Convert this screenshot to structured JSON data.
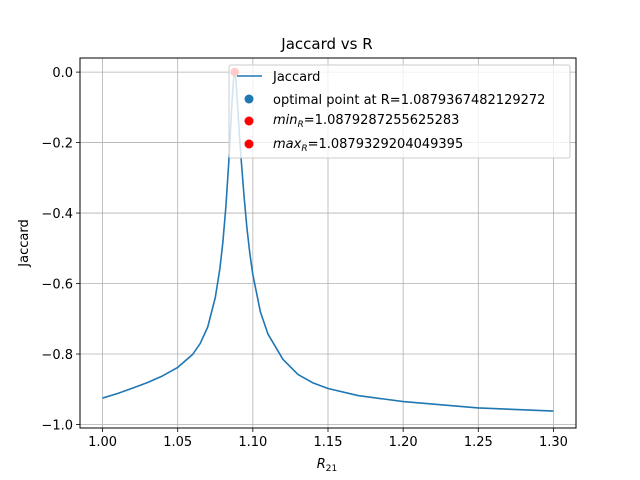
{
  "chart_data": {
    "type": "line",
    "title": "Jaccard vs R",
    "xlabel": {
      "base": "R",
      "sub": "21"
    },
    "ylabel": "Jaccard",
    "xlim": [
      0.985,
      1.315
    ],
    "ylim": [
      -1.01,
      0.04
    ],
    "xticks": [
      1.0,
      1.05,
      1.1,
      1.15,
      1.2,
      1.25,
      1.3
    ],
    "xtick_labels": [
      "1.00",
      "1.05",
      "1.10",
      "1.15",
      "1.20",
      "1.25",
      "1.30"
    ],
    "yticks": [
      0.0,
      -0.2,
      -0.4,
      -0.6,
      -0.8,
      -1.0
    ],
    "ytick_labels": [
      "0.0",
      "−0.2",
      "−0.4",
      "−0.6",
      "−0.8",
      "−1.0"
    ],
    "grid": true,
    "legend_placement": "upper-right",
    "series": [
      {
        "name": "Jaccard",
        "kind": "line",
        "color": "#1f77b4",
        "x": [
          1.0,
          1.01,
          1.02,
          1.03,
          1.04,
          1.05,
          1.06,
          1.065,
          1.07,
          1.075,
          1.078,
          1.08,
          1.082,
          1.084,
          1.085,
          1.086,
          1.087,
          1.0875,
          1.0879,
          1.0885,
          1.089,
          1.09,
          1.091,
          1.092,
          1.094,
          1.096,
          1.098,
          1.1,
          1.105,
          1.11,
          1.12,
          1.13,
          1.14,
          1.15,
          1.17,
          1.2,
          1.25,
          1.3
        ],
        "y": [
          -0.925,
          -0.912,
          -0.897,
          -0.881,
          -0.862,
          -0.838,
          -0.801,
          -0.77,
          -0.723,
          -0.64,
          -0.56,
          -0.485,
          -0.385,
          -0.255,
          -0.175,
          -0.095,
          -0.03,
          -0.008,
          0.0,
          -0.01,
          -0.04,
          -0.105,
          -0.175,
          -0.235,
          -0.345,
          -0.44,
          -0.515,
          -0.575,
          -0.68,
          -0.743,
          -0.815,
          -0.858,
          -0.882,
          -0.898,
          -0.918,
          -0.935,
          -0.953,
          -0.962
        ]
      },
      {
        "name": "optimal point at R=1.0879367482129272",
        "kind": "point",
        "color": "#1f77b4",
        "x": [
          1.0879367482129272
        ],
        "y": [
          0.0
        ]
      },
      {
        "name_base": "min",
        "name_sub": "R",
        "name_rest": "=1.0879287255625283",
        "kind": "point",
        "color": "#ff0000",
        "x": [
          1.0879287255625283
        ],
        "y": [
          0.0
        ]
      },
      {
        "name_base": "max",
        "name_sub": "R",
        "name_rest": "=1.0879329204049395",
        "kind": "point",
        "color": "#ff0000",
        "x": [
          1.0879329204049395
        ],
        "y": [
          0.0
        ]
      }
    ]
  }
}
